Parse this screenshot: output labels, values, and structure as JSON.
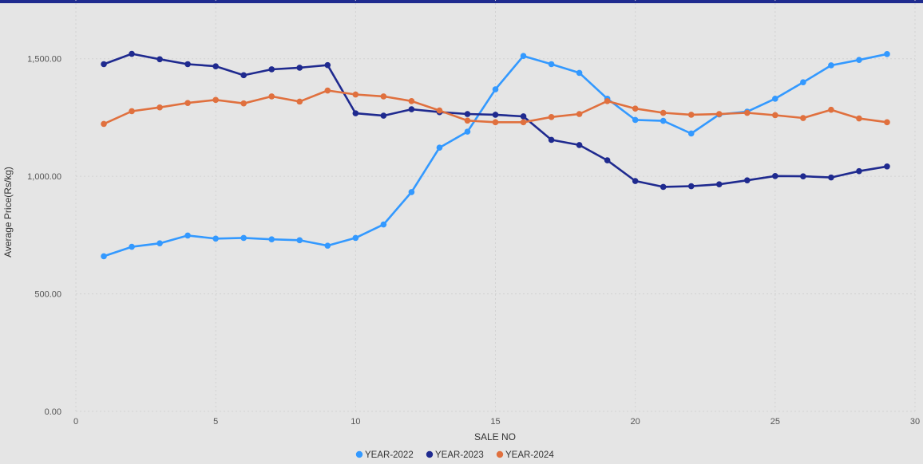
{
  "chart_data": {
    "type": "line",
    "xlabel": "SALE NO",
    "ylabel": "Average Price(Rs/kg)",
    "xlim": [
      0,
      30
    ],
    "ylim": [
      0,
      1750
    ],
    "x_ticks": [
      0,
      5,
      10,
      15,
      20,
      25,
      30
    ],
    "y_ticks": [
      0,
      500,
      1000,
      1500
    ],
    "y_tick_labels": [
      "0.00",
      "500.00",
      "1,000.00",
      "1,500.00"
    ],
    "grid": true,
    "legend_position": "bottom-center",
    "x": [
      1,
      2,
      3,
      4,
      5,
      6,
      7,
      8,
      9,
      10,
      11,
      12,
      13,
      14,
      15,
      16,
      17,
      18,
      19,
      20,
      21,
      22,
      23,
      24,
      25,
      26,
      27,
      28,
      29
    ],
    "series": [
      {
        "name": "YEAR-2022",
        "color": "#3399ff",
        "values": [
          660,
          700,
          715,
          748,
          735,
          738,
          732,
          728,
          705,
          738,
          795,
          933,
          1122,
          1190,
          1370,
          1512,
          1477,
          1440,
          1330,
          1240,
          1236,
          1182,
          1263,
          1275,
          1330,
          1400,
          1472,
          1495,
          1520
        ]
      },
      {
        "name": "YEAR-2023",
        "color": "#1f2a8f",
        "values": [
          1477,
          1521,
          1498,
          1477,
          1468,
          1430,
          1455,
          1462,
          1473,
          1268,
          1258,
          1285,
          1273,
          1265,
          1262,
          1255,
          1155,
          1133,
          1068,
          980,
          955,
          958,
          966,
          983,
          1001,
          1000,
          995,
          1022,
          1042
        ]
      },
      {
        "name": "YEAR-2024",
        "color": "#e0703e",
        "values": [
          1223,
          1277,
          1293,
          1312,
          1325,
          1310,
          1340,
          1318,
          1365,
          1348,
          1340,
          1320,
          1280,
          1237,
          1230,
          1230,
          1252,
          1265,
          1320,
          1288,
          1270,
          1262,
          1265,
          1270,
          1260,
          1248,
          1283,
          1246,
          1230
        ]
      }
    ]
  }
}
